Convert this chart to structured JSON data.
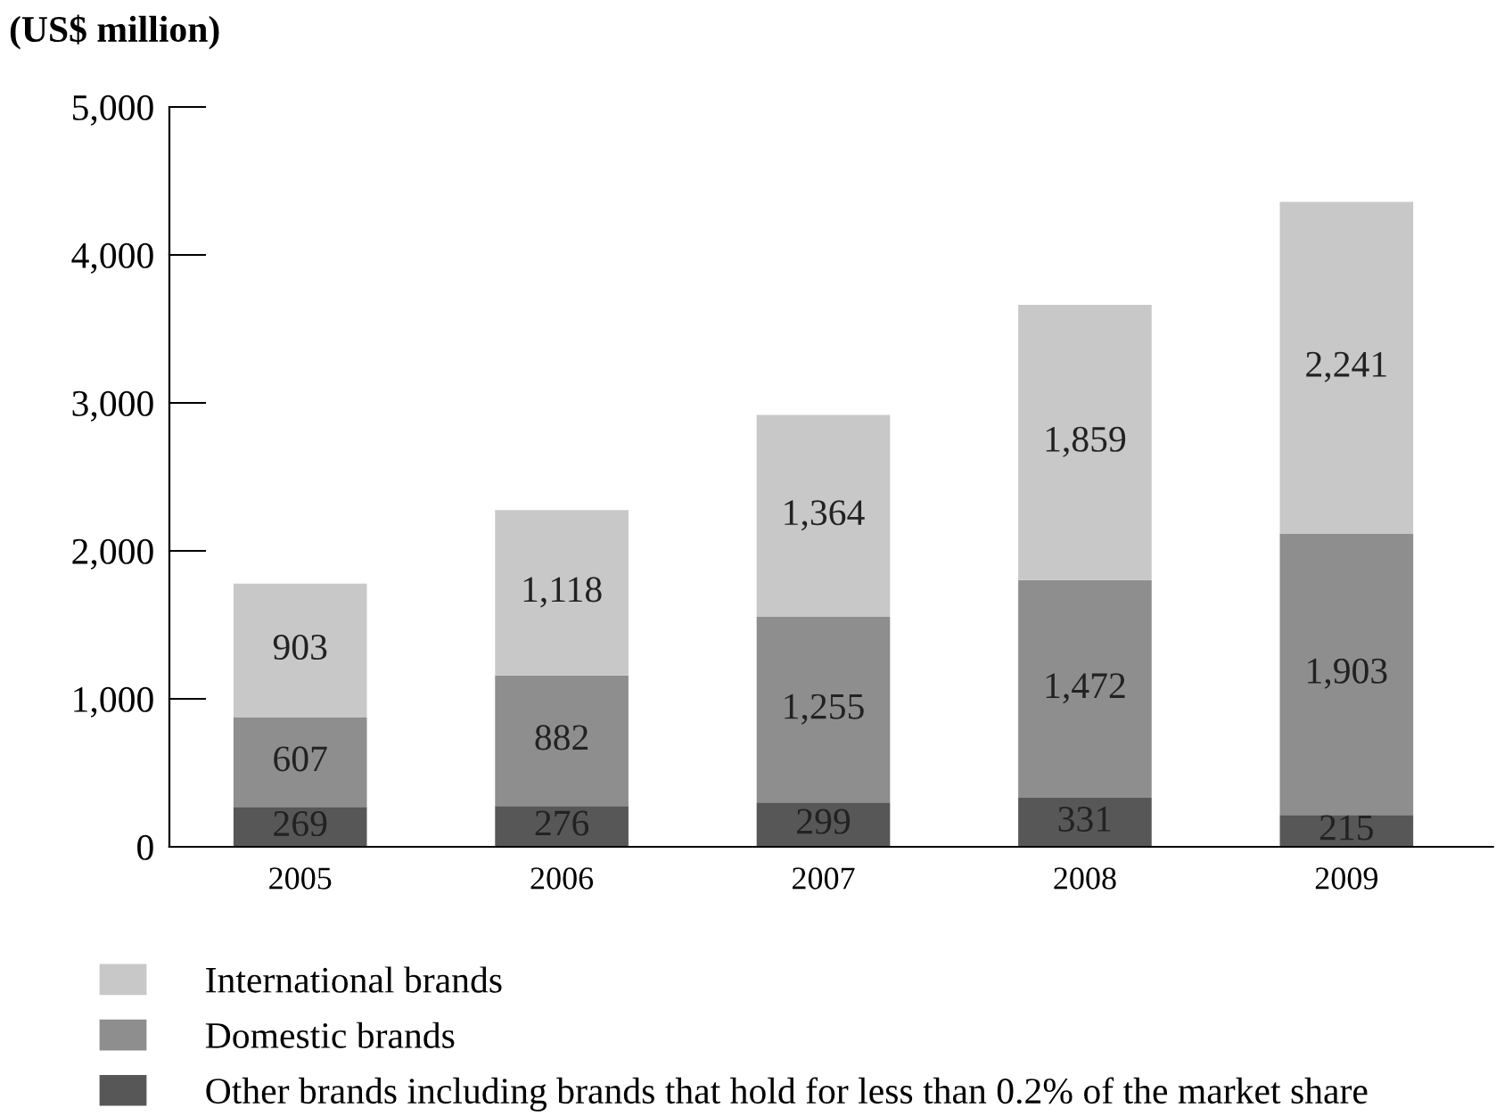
{
  "chart_data": {
    "type": "bar",
    "stacked": true,
    "ylabel": "(US$ million)",
    "categories": [
      "2005",
      "2006",
      "2007",
      "2008",
      "2009"
    ],
    "series": [
      {
        "name": "Other brands including brands that hold for less than 0.2% of the market share",
        "color": "#575757",
        "values": [
          269,
          276,
          299,
          331,
          215
        ],
        "value_labels": [
          "269",
          "276",
          "299",
          "331",
          "215"
        ]
      },
      {
        "name": "Domestic brands",
        "color": "#8e8e8e",
        "values": [
          607,
          882,
          1255,
          1472,
          1903
        ],
        "value_labels": [
          "607",
          "882",
          "1,255",
          "1,472",
          "1,903"
        ]
      },
      {
        "name": "International brands",
        "color": "#c8c8c8",
        "values": [
          903,
          1118,
          1364,
          1859,
          2241
        ],
        "value_labels": [
          "903",
          "1,118",
          "1,364",
          "1,859",
          "2,241"
        ]
      }
    ],
    "ylim": [
      0,
      5000
    ],
    "yticks": [
      {
        "value": 0,
        "label": "0"
      },
      {
        "value": 1000,
        "label": "1,000"
      },
      {
        "value": 2000,
        "label": "2,000"
      },
      {
        "value": 3000,
        "label": "3,000"
      },
      {
        "value": 4000,
        "label": "4,000"
      },
      {
        "value": 5000,
        "label": "5,000"
      }
    ],
    "grid": false,
    "legend": "bottom left"
  }
}
